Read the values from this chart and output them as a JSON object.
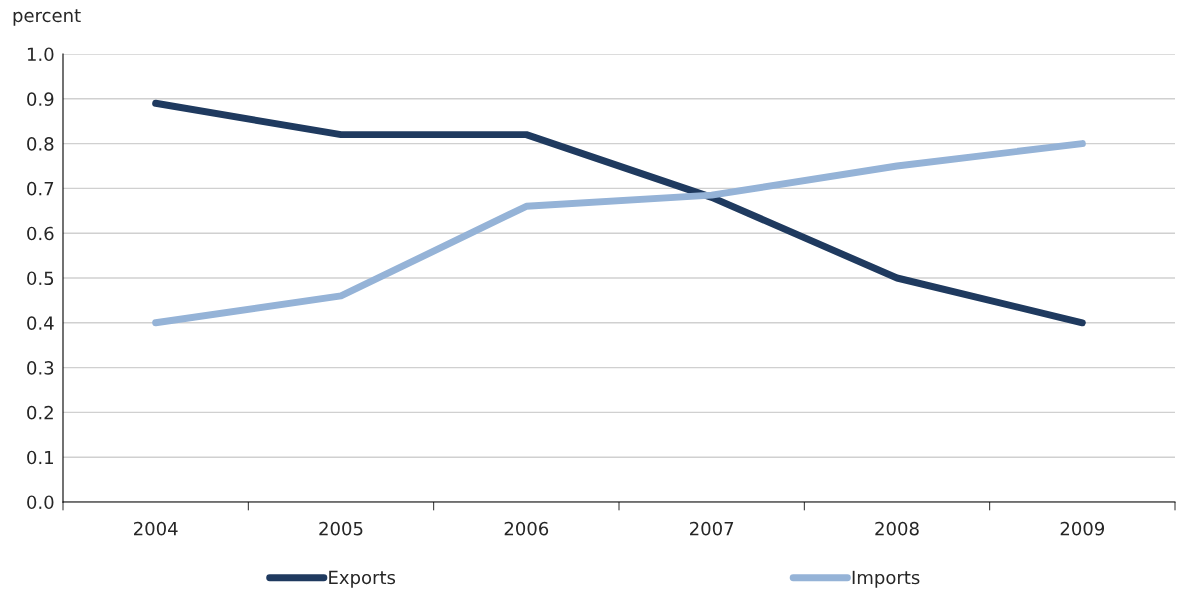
{
  "chart_data": {
    "type": "line",
    "ylabel": "percent",
    "categories": [
      "2004",
      "2005",
      "2006",
      "2007",
      "2008",
      "2009"
    ],
    "series": [
      {
        "name": "Exports",
        "color": "#1f3a5f",
        "values": [
          0.89,
          0.82,
          0.82,
          0.68,
          0.5,
          0.4
        ]
      },
      {
        "name": "Imports",
        "color": "#95b3d7",
        "values": [
          0.4,
          0.46,
          0.66,
          0.685,
          0.75,
          0.8
        ]
      }
    ],
    "ylim": [
      0,
      1
    ],
    "yticks": [
      {
        "value": 0,
        "label": "0.0"
      },
      0.1,
      0.2,
      0.3,
      0.4,
      0.5,
      0.6,
      0.7,
      0.8,
      0.9,
      {
        "value": 1,
        "label": "1.0"
      }
    ],
    "grid": "y",
    "legend": "bottom",
    "marker": "none",
    "line_style": "solid"
  }
}
